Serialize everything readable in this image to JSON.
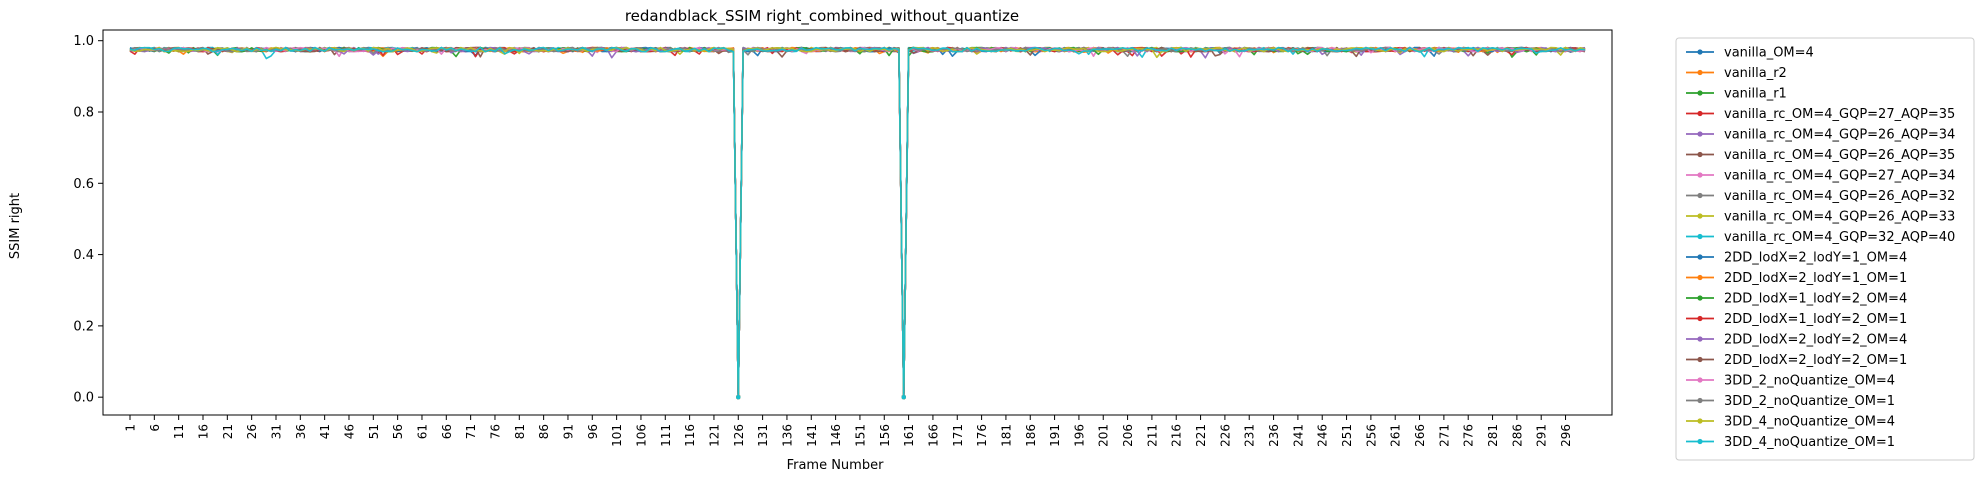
{
  "chart_data": {
    "type": "line",
    "title": "redandblack_SSIM right_combined_without_quantize",
    "xlabel": "Frame Number",
    "ylabel": "SSIM right",
    "xlim": [
      1,
      300
    ],
    "ylim": [
      -0.05,
      1.03
    ],
    "xticks": [
      "1",
      "6",
      "11",
      "16",
      "21",
      "26",
      "31",
      "36",
      "41",
      "46",
      "51",
      "56",
      "61",
      "66",
      "71",
      "76",
      "81",
      "86",
      "91",
      "96",
      "101",
      "106",
      "111",
      "116",
      "121",
      "126",
      "131",
      "136",
      "141",
      "146",
      "151",
      "156",
      "161",
      "166",
      "171",
      "176",
      "181",
      "186",
      "191",
      "196",
      "201",
      "206",
      "211",
      "216",
      "221",
      "226",
      "231",
      "236",
      "241",
      "246",
      "251",
      "256",
      "261",
      "266",
      "271",
      "276",
      "281",
      "286",
      "291",
      "296"
    ],
    "yticks": [
      "0.0",
      "0.2",
      "0.4",
      "0.6",
      "0.8",
      "1.0"
    ],
    "grid": false,
    "legend_position": "outside-right",
    "baseline_ssim": 0.975,
    "dips": [
      {
        "frame": 126,
        "value": 0.0
      },
      {
        "frame": 160,
        "value": 0.0
      }
    ],
    "series": [
      {
        "name": "vanilla_OM=4",
        "color": "#1f77b4"
      },
      {
        "name": "vanilla_r2",
        "color": "#ff7f0e"
      },
      {
        "name": "vanilla_r1",
        "color": "#2ca02c"
      },
      {
        "name": "vanilla_rc_OM=4_GQP=27_AQP=35",
        "color": "#d62728"
      },
      {
        "name": "vanilla_rc_OM=4_GQP=26_AQP=34",
        "color": "#9467bd"
      },
      {
        "name": "vanilla_rc_OM=4_GQP=26_AQP=35",
        "color": "#8c564b"
      },
      {
        "name": "vanilla_rc_OM=4_GQP=27_AQP=34",
        "color": "#e377c2"
      },
      {
        "name": "vanilla_rc_OM=4_GQP=26_AQP=32",
        "color": "#7f7f7f"
      },
      {
        "name": "vanilla_rc_OM=4_GQP=26_AQP=33",
        "color": "#bcbd22"
      },
      {
        "name": "vanilla_rc_OM=4_GQP=32_AQP=40",
        "color": "#17becf"
      },
      {
        "name": "2DD_lodX=2_lodY=1_OM=4",
        "color": "#1f77b4"
      },
      {
        "name": "2DD_lodX=2_lodY=1_OM=1",
        "color": "#ff7f0e"
      },
      {
        "name": "2DD_lodX=1_lodY=2_OM=4",
        "color": "#2ca02c"
      },
      {
        "name": "2DD_lodX=1_lodY=2_OM=1",
        "color": "#d62728"
      },
      {
        "name": "2DD_lodX=2_lodY=2_OM=4",
        "color": "#9467bd"
      },
      {
        "name": "2DD_lodX=2_lodY=2_OM=1",
        "color": "#8c564b"
      },
      {
        "name": "3DD_2_noQuantize_OM=4",
        "color": "#e377c2"
      },
      {
        "name": "3DD_2_noQuantize_OM=1",
        "color": "#7f7f7f"
      },
      {
        "name": "3DD_4_noQuantize_OM=4",
        "color": "#bcbd22"
      },
      {
        "name": "3DD_4_noQuantize_OM=1",
        "color": "#17becf"
      }
    ]
  }
}
